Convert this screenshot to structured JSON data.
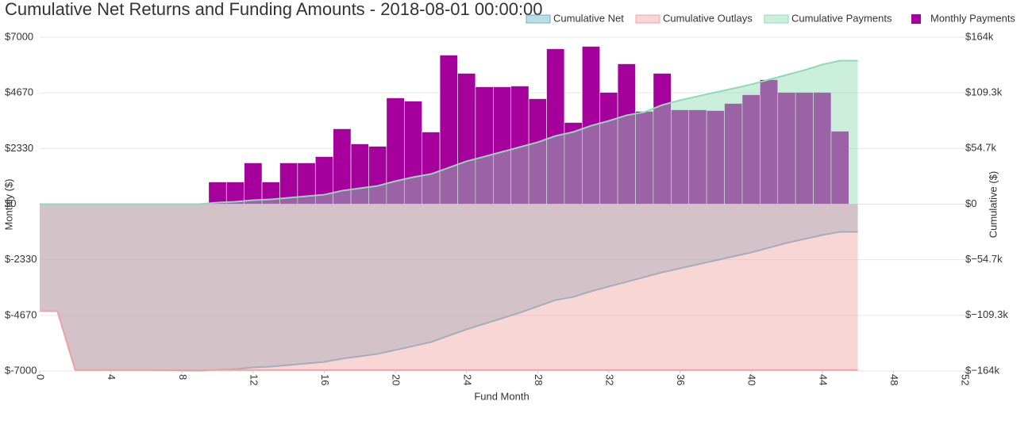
{
  "chart_data": {
    "type": "combo",
    "title": "Cumulative Net Returns and Funding Amounts - 2018-08-01 00:00:00",
    "x_label": "Fund Month",
    "y_label": "Monthly ($)",
    "y2_label": "Cumulative ($)",
    "x": [
      0,
      1,
      2,
      3,
      4,
      5,
      6,
      7,
      8,
      9,
      10,
      11,
      12,
      13,
      14,
      15,
      16,
      17,
      18,
      19,
      20,
      21,
      22,
      23,
      24,
      25,
      26,
      27,
      28,
      29,
      30,
      31,
      32,
      33,
      34,
      35,
      36,
      37,
      38,
      39,
      40,
      41,
      42,
      43,
      44,
      45,
      46
    ],
    "xlim": [
      0,
      52
    ],
    "xticks": [
      0,
      4,
      8,
      12,
      16,
      20,
      24,
      28,
      32,
      36,
      40,
      44,
      48,
      52
    ],
    "ylim": [
      -7000,
      7000
    ],
    "yticks": [
      {
        "value": -7000,
        "label": "$-7000"
      },
      {
        "value": -4670,
        "label": "$-4670"
      },
      {
        "value": -2330,
        "label": "$-2330"
      },
      {
        "value": 0,
        "label": "$0"
      },
      {
        "value": 2330,
        "label": "$2330"
      },
      {
        "value": 4670,
        "label": "$4670"
      },
      {
        "value": 7000,
        "label": "$7000"
      }
    ],
    "y2lim": [
      -164000,
      164000
    ],
    "y2ticks": [
      {
        "value": -164000,
        "label": "$−164k"
      },
      {
        "value": -109300,
        "label": "$−109.3k"
      },
      {
        "value": -54700,
        "label": "$−54.7k"
      },
      {
        "value": 0,
        "label": "$0"
      },
      {
        "value": 54700,
        "label": "$54.7k"
      },
      {
        "value": 109300,
        "label": "$109.3k"
      },
      {
        "value": 164000,
        "label": "$164k"
      }
    ],
    "grid": true,
    "series": [
      {
        "name": "Cumulative Net",
        "type": "area",
        "axis": "y2",
        "color": "#6bb3c8",
        "values": [
          -105200,
          -105200,
          -163000,
          -163000,
          -163000,
          -163000,
          -163000,
          -163200,
          -163400,
          -163600,
          -162800,
          -162100,
          -160500,
          -159700,
          -158200,
          -156600,
          -155000,
          -151900,
          -149600,
          -147200,
          -143400,
          -139500,
          -135600,
          -129300,
          -123100,
          -117600,
          -112200,
          -106700,
          -100500,
          -94300,
          -91200,
          -85700,
          -81000,
          -76400,
          -71700,
          -67000,
          -63100,
          -59200,
          -55300,
          -51400,
          -47500,
          -42900,
          -38200,
          -34300,
          -30400,
          -27300,
          -27300
        ]
      },
      {
        "name": "Cumulative Outlays",
        "type": "area",
        "axis": "y2",
        "color": "#f0a3a3",
        "values": [
          -105200,
          -105200,
          -163000,
          -163000,
          -163000,
          -163000,
          -163000,
          -163000,
          -163000,
          -163000,
          -163000,
          -163000,
          -163000,
          -163000,
          -163000,
          -163000,
          -163000,
          -163000,
          -163000,
          -163000,
          -163000,
          -163000,
          -163000,
          -163000,
          -163000,
          -163000,
          -163000,
          -163000,
          -163000,
          -163000,
          -163000,
          -163000,
          -163000,
          -163000,
          -163000,
          -163000,
          -163000,
          -163000,
          -163000,
          -163000,
          -163000,
          -163000,
          -163000,
          -163000,
          -163000,
          -163000,
          -163000
        ]
      },
      {
        "name": "Cumulative Payments",
        "type": "area",
        "axis": "y2",
        "color": "#8fd9b4",
        "values": [
          0,
          0,
          0,
          0,
          0,
          0,
          0,
          0,
          0,
          0,
          1600,
          2300,
          3900,
          4700,
          6200,
          7800,
          9300,
          13200,
          15600,
          17900,
          22600,
          26500,
          29600,
          35800,
          42100,
          46700,
          51400,
          56100,
          60800,
          67000,
          70900,
          77100,
          81800,
          87300,
          90400,
          97400,
          102100,
          106000,
          109900,
          113700,
          117600,
          122300,
          127000,
          131700,
          137100,
          141000,
          141000
        ]
      },
      {
        "name": "Monthly Payments",
        "type": "bar",
        "axis": "y",
        "color": "#a6009c",
        "values": [
          null,
          null,
          null,
          null,
          null,
          null,
          null,
          null,
          null,
          null,
          930,
          930,
          1730,
          930,
          1730,
          1730,
          1995,
          3160,
          2527,
          2427,
          4456,
          4323,
          3026,
          6252,
          5487,
          4922,
          4922,
          4955,
          4423,
          6518,
          3425,
          6618,
          4689,
          5886,
          3891,
          5487,
          3957,
          3957,
          3924,
          4223,
          4589,
          5221,
          4689,
          4689,
          4689,
          3059,
          null
        ]
      }
    ]
  }
}
